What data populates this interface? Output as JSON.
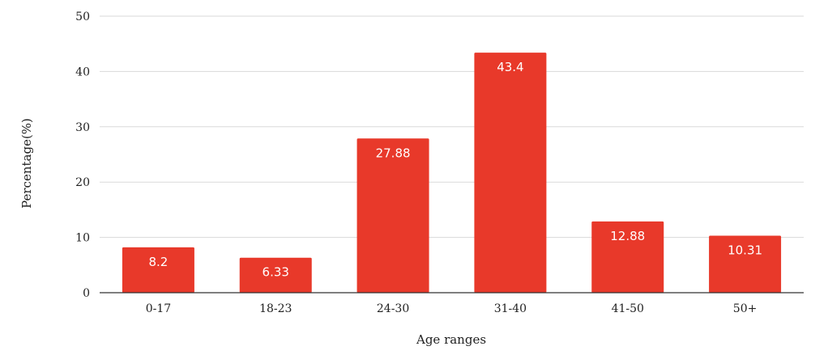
{
  "chart_data": {
    "type": "bar",
    "categories": [
      "0-17",
      "18-23",
      "24-30",
      "31-40",
      "41-50",
      "50+"
    ],
    "series": [
      {
        "values": [
          8.2,
          6.33,
          27.88,
          43.4,
          12.88,
          10.31
        ],
        "color": "#e8392a"
      }
    ],
    "data_labels": [
      "8.2",
      "6.33",
      "27.88",
      "43.4",
      "12.88",
      "10.31"
    ],
    "xlabel": "Age ranges",
    "ylabel": "Percentage(%)",
    "ylim": [
      0,
      50
    ],
    "yticks": [
      0,
      10,
      20,
      30,
      40,
      50
    ],
    "ytick_labels": [
      "0",
      "10",
      "20",
      "30",
      "40",
      "50"
    ],
    "grid": true,
    "legend": "none"
  }
}
